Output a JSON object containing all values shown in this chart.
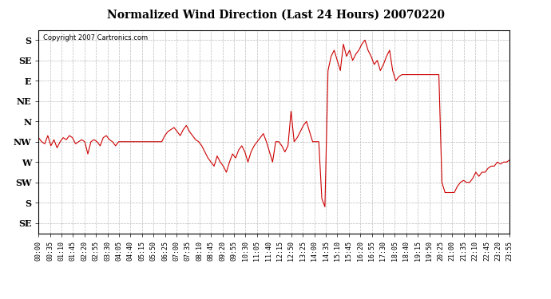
{
  "title": "Normalized Wind Direction (Last 24 Hours) 20070220",
  "copyright": "Copyright 2007 Cartronics.com",
  "line_color": "#cc0000",
  "bg_color": "#ffffff",
  "plot_bg_color": "#ffffff",
  "grid_color": "#bbbbbb",
  "title_fontsize": 12,
  "ytick_labels": [
    "SE",
    "S",
    "SW",
    "W",
    "NW",
    "N",
    "NE",
    "E",
    "SE",
    "S"
  ],
  "ytick_values": [
    0,
    1,
    2,
    3,
    4,
    5,
    6,
    7,
    8,
    9
  ],
  "ylim": [
    -0.5,
    9.5
  ],
  "xtick_labels": [
    "00:00",
    "00:35",
    "01:10",
    "01:45",
    "02:20",
    "02:55",
    "03:30",
    "04:05",
    "04:40",
    "05:15",
    "05:50",
    "06:25",
    "07:00",
    "07:35",
    "08:10",
    "08:45",
    "09:20",
    "09:55",
    "10:30",
    "11:05",
    "11:40",
    "12:15",
    "12:50",
    "13:25",
    "14:00",
    "14:35",
    "15:10",
    "15:45",
    "16:20",
    "16:55",
    "17:30",
    "18:05",
    "18:40",
    "19:15",
    "19:50",
    "20:25",
    "21:00",
    "21:35",
    "22:10",
    "22:45",
    "23:20",
    "23:55"
  ],
  "wind_data": [
    [
      0,
      4.2
    ],
    [
      1,
      4.0
    ],
    [
      2,
      3.9
    ],
    [
      3,
      4.3
    ],
    [
      4,
      3.8
    ],
    [
      5,
      4.1
    ],
    [
      6,
      3.7
    ],
    [
      7,
      4.0
    ],
    [
      8,
      4.2
    ],
    [
      9,
      4.1
    ],
    [
      10,
      4.3
    ],
    [
      11,
      4.2
    ],
    [
      12,
      3.9
    ],
    [
      13,
      4.0
    ],
    [
      14,
      4.1
    ],
    [
      15,
      4.0
    ],
    [
      16,
      3.4
    ],
    [
      17,
      4.0
    ],
    [
      18,
      4.1
    ],
    [
      19,
      4.0
    ],
    [
      20,
      3.8
    ],
    [
      21,
      4.2
    ],
    [
      22,
      4.3
    ],
    [
      23,
      4.1
    ],
    [
      24,
      4.0
    ],
    [
      25,
      3.8
    ],
    [
      26,
      4.0
    ],
    [
      27,
      4.0
    ],
    [
      28,
      4.0
    ],
    [
      29,
      4.0
    ],
    [
      30,
      4.0
    ],
    [
      31,
      4.0
    ],
    [
      32,
      4.0
    ],
    [
      33,
      4.0
    ],
    [
      34,
      4.0
    ],
    [
      35,
      4.0
    ],
    [
      36,
      4.0
    ],
    [
      37,
      4.0
    ],
    [
      38,
      4.0
    ],
    [
      39,
      4.0
    ],
    [
      40,
      4.0
    ],
    [
      41,
      4.3
    ],
    [
      42,
      4.5
    ],
    [
      43,
      4.6
    ],
    [
      44,
      4.7
    ],
    [
      45,
      4.5
    ],
    [
      46,
      4.3
    ],
    [
      47,
      4.6
    ],
    [
      48,
      4.8
    ],
    [
      49,
      4.5
    ],
    [
      50,
      4.3
    ],
    [
      51,
      4.1
    ],
    [
      52,
      4.0
    ],
    [
      53,
      3.8
    ],
    [
      54,
      3.5
    ],
    [
      55,
      3.2
    ],
    [
      56,
      3.0
    ],
    [
      57,
      2.8
    ],
    [
      58,
      3.3
    ],
    [
      59,
      3.0
    ],
    [
      60,
      2.8
    ],
    [
      61,
      2.5
    ],
    [
      62,
      3.0
    ],
    [
      63,
      3.4
    ],
    [
      64,
      3.2
    ],
    [
      65,
      3.6
    ],
    [
      66,
      3.8
    ],
    [
      67,
      3.5
    ],
    [
      68,
      3.0
    ],
    [
      69,
      3.5
    ],
    [
      70,
      3.8
    ],
    [
      71,
      4.0
    ],
    [
      72,
      4.2
    ],
    [
      73,
      4.4
    ],
    [
      74,
      4.0
    ],
    [
      75,
      3.5
    ],
    [
      76,
      3.0
    ],
    [
      77,
      4.0
    ],
    [
      78,
      4.0
    ],
    [
      79,
      3.8
    ],
    [
      80,
      3.5
    ],
    [
      81,
      3.8
    ],
    [
      82,
      5.5
    ],
    [
      83,
      4.0
    ],
    [
      84,
      4.2
    ],
    [
      85,
      4.5
    ],
    [
      86,
      4.8
    ],
    [
      87,
      5.0
    ],
    [
      88,
      4.5
    ],
    [
      89,
      4.0
    ],
    [
      90,
      4.0
    ],
    [
      91,
      4.0
    ],
    [
      92,
      1.2
    ],
    [
      93,
      0.8
    ],
    [
      94,
      7.5
    ],
    [
      95,
      8.2
    ],
    [
      96,
      8.5
    ],
    [
      97,
      8.0
    ],
    [
      98,
      7.5
    ],
    [
      99,
      8.8
    ],
    [
      100,
      8.2
    ],
    [
      101,
      8.5
    ],
    [
      102,
      8.0
    ],
    [
      103,
      8.3
    ],
    [
      104,
      8.5
    ],
    [
      105,
      8.8
    ],
    [
      106,
      9.0
    ],
    [
      107,
      8.5
    ],
    [
      108,
      8.2
    ],
    [
      109,
      7.8
    ],
    [
      110,
      8.0
    ],
    [
      111,
      7.5
    ],
    [
      112,
      7.8
    ],
    [
      113,
      8.2
    ],
    [
      114,
      8.5
    ],
    [
      115,
      7.5
    ],
    [
      116,
      7.0
    ],
    [
      117,
      7.2
    ],
    [
      118,
      7.3
    ],
    [
      119,
      7.3
    ],
    [
      120,
      7.3
    ],
    [
      121,
      7.3
    ],
    [
      122,
      7.3
    ],
    [
      123,
      7.3
    ],
    [
      124,
      7.3
    ],
    [
      125,
      7.3
    ],
    [
      126,
      7.3
    ],
    [
      127,
      7.3
    ],
    [
      128,
      7.3
    ],
    [
      129,
      7.3
    ],
    [
      130,
      7.3
    ],
    [
      131,
      2.0
    ],
    [
      132,
      1.5
    ],
    [
      133,
      1.5
    ],
    [
      134,
      1.5
    ],
    [
      135,
      1.5
    ],
    [
      136,
      1.8
    ],
    [
      137,
      2.0
    ],
    [
      138,
      2.1
    ],
    [
      139,
      2.0
    ],
    [
      140,
      2.0
    ],
    [
      141,
      2.2
    ],
    [
      142,
      2.5
    ],
    [
      143,
      2.3
    ],
    [
      144,
      2.5
    ],
    [
      145,
      2.5
    ],
    [
      146,
      2.7
    ],
    [
      147,
      2.8
    ],
    [
      148,
      2.8
    ],
    [
      149,
      3.0
    ],
    [
      150,
      2.9
    ],
    [
      151,
      3.0
    ],
    [
      152,
      3.0
    ],
    [
      153,
      3.1
    ]
  ]
}
